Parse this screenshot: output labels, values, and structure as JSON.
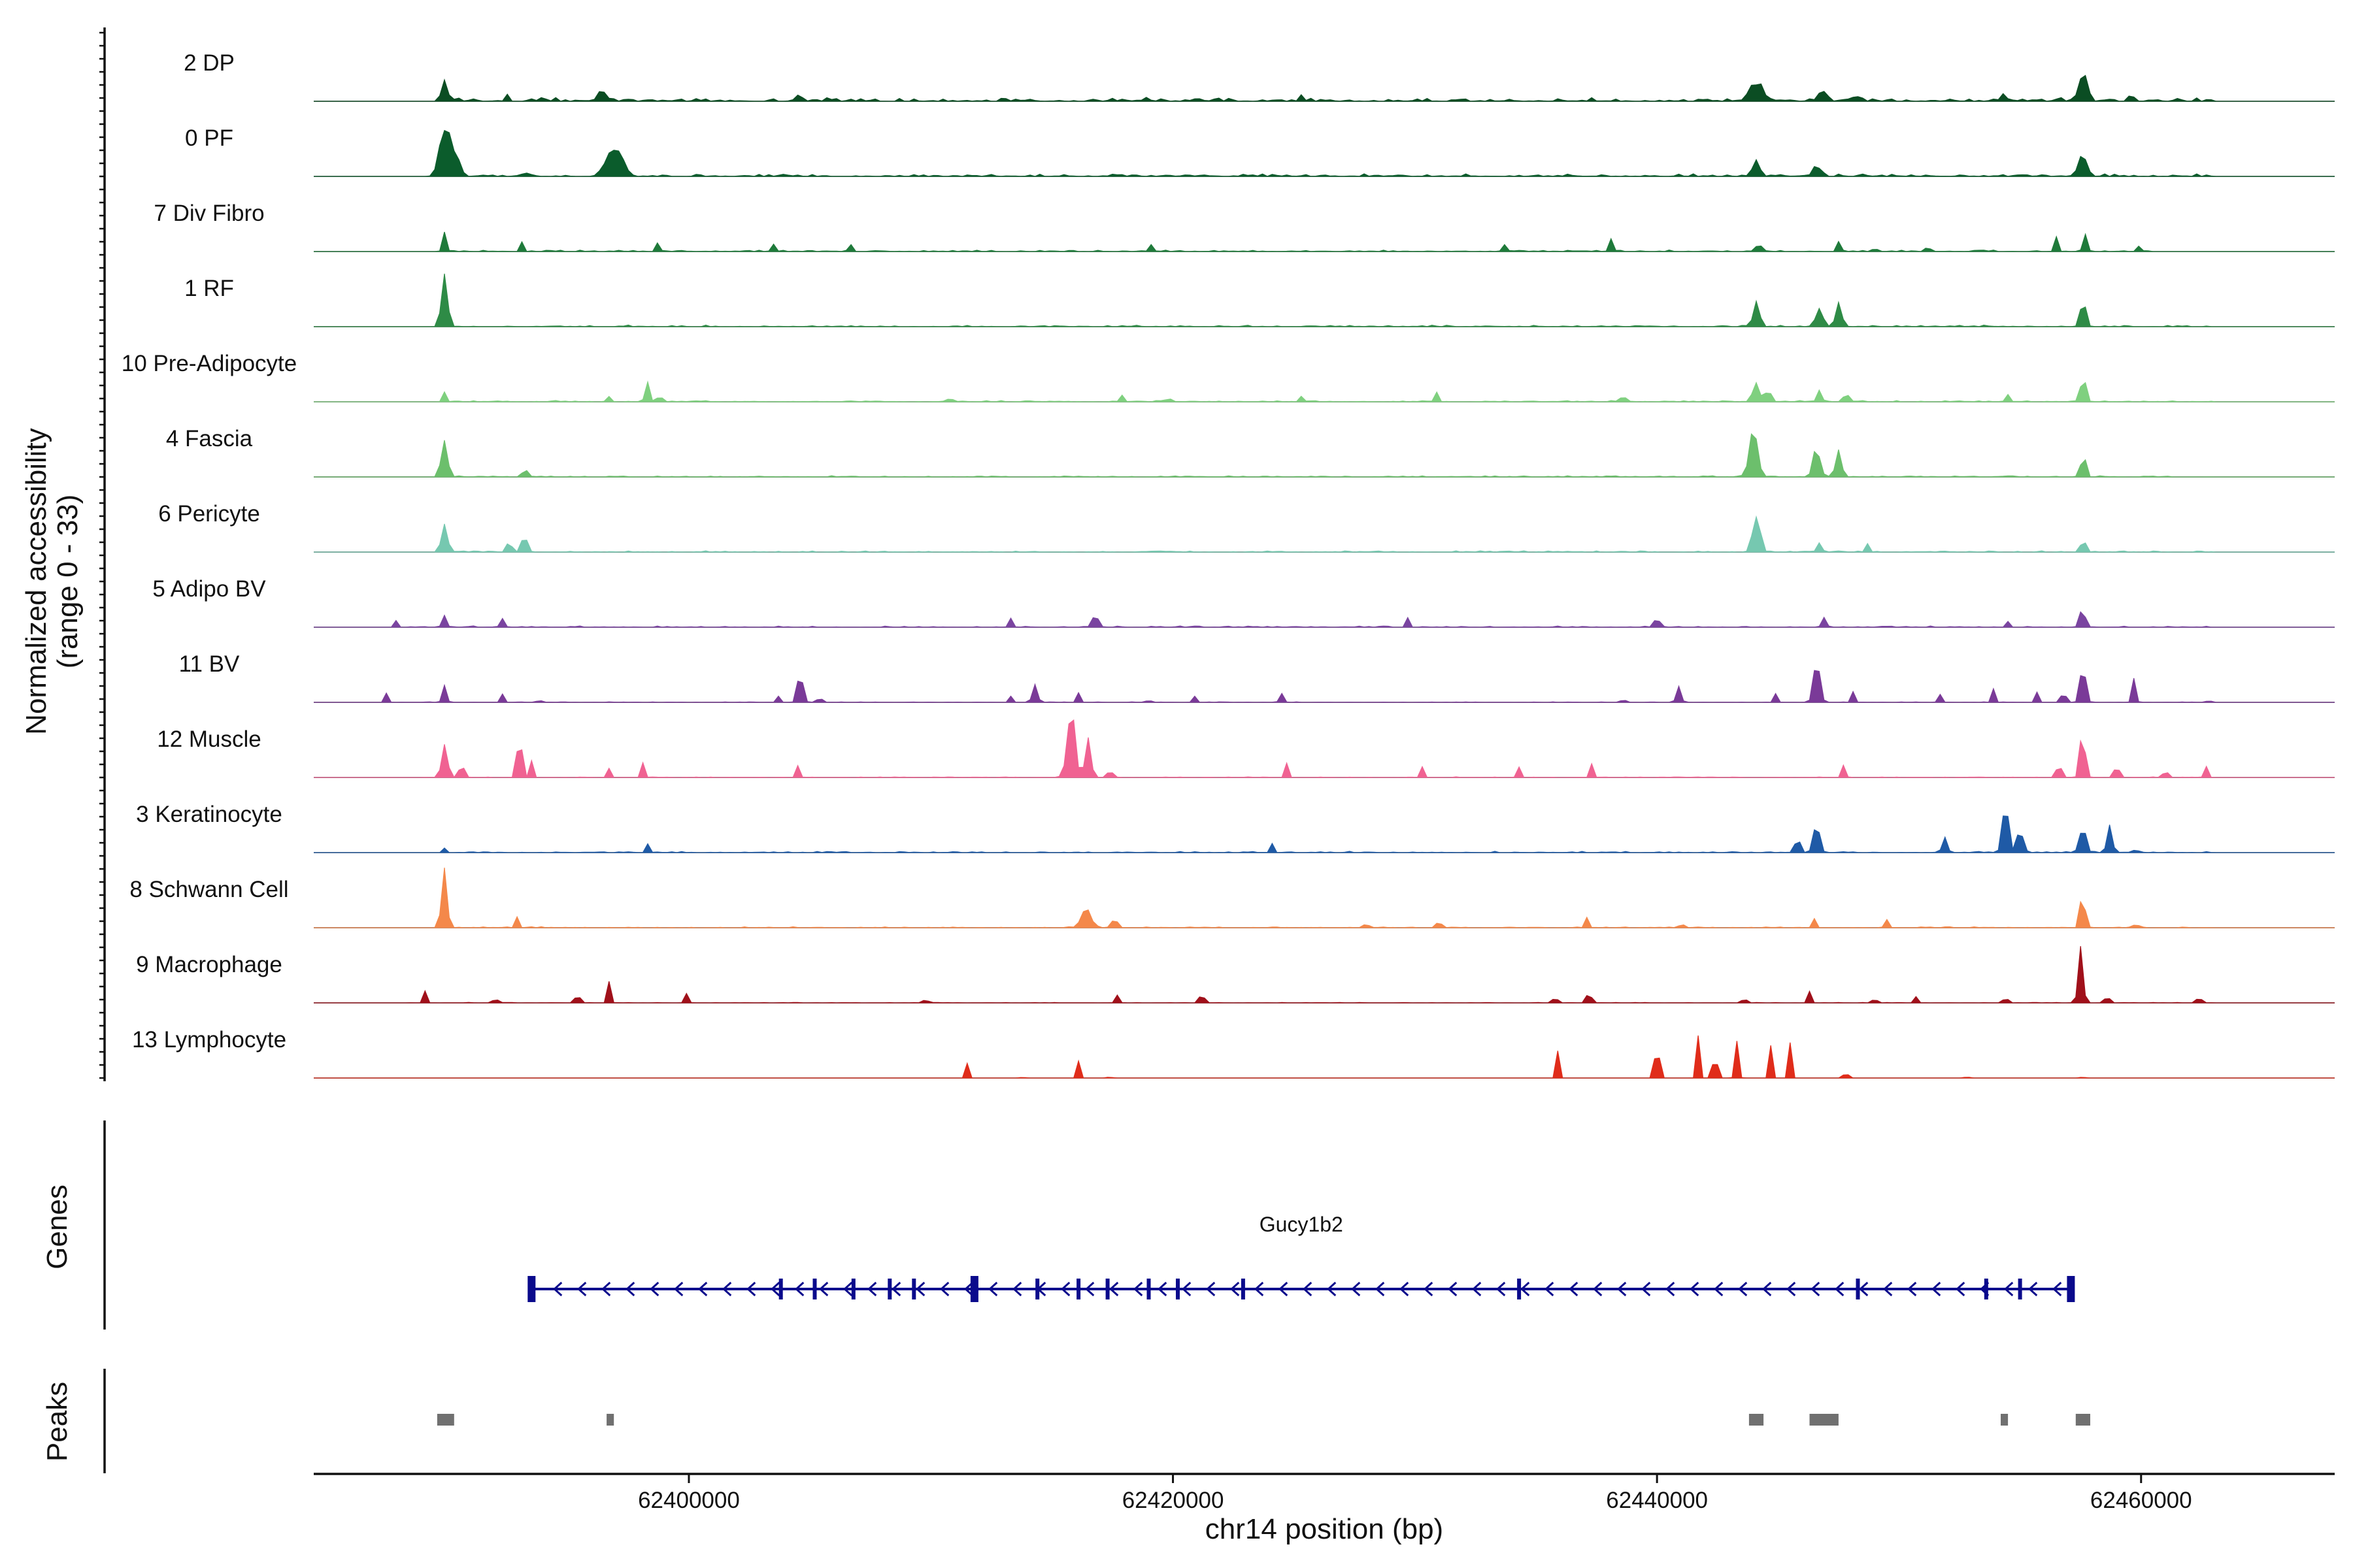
{
  "chart_data": {
    "type": "genome-browser-coverage",
    "y_axis_title_line1": "Normalized accessibility",
    "y_axis_title_line2": "(range 0 - 33)",
    "y_range": [
      0,
      33
    ],
    "x_axis_title": "chr14 position (bp)",
    "x_range": [
      62384500,
      62468000
    ],
    "x_ticks": [
      62400000,
      62420000,
      62440000,
      62460000
    ],
    "x_tick_labels": [
      "62400000",
      "62420000",
      "62440000",
      "62460000"
    ],
    "tracks": [
      {
        "name": "2 DP",
        "color": "#0b4d23",
        "noise": 0.7,
        "region": [
          62390000,
          62463000
        ],
        "peaks": [
          [
            62389900,
            3.5,
            120
          ],
          [
            62392500,
            0.8,
            60
          ],
          [
            62396400,
            1.6,
            180
          ],
          [
            62404600,
            0.8,
            100
          ],
          [
            62425300,
            0.6,
            80
          ],
          [
            62444100,
            3.2,
            260
          ],
          [
            62446800,
            1.5,
            180
          ],
          [
            62448200,
            1.0,
            100
          ],
          [
            62454300,
            1.0,
            120
          ],
          [
            62457600,
            6.0,
            160
          ],
          [
            62459600,
            1.0,
            100
          ]
        ]
      },
      {
        "name": "0 PF",
        "color": "#0b5c2c",
        "noise": 0.5,
        "region": [
          62390000,
          62463000
        ],
        "peaks": [
          [
            62389900,
            10.0,
            200
          ],
          [
            62390400,
            3.0,
            150
          ],
          [
            62393200,
            0.8,
            60
          ],
          [
            62396800,
            4.5,
            260
          ],
          [
            62397200,
            2.0,
            200
          ],
          [
            62444100,
            2.5,
            140
          ],
          [
            62446600,
            1.5,
            160
          ],
          [
            62457600,
            5.0,
            140
          ]
        ]
      },
      {
        "name": "7 Div Fibro",
        "color": "#1e7a3a",
        "noise": 0.3,
        "region": [
          62390000,
          62460500
        ],
        "peaks": [
          [
            62389900,
            2.8,
            80
          ],
          [
            62393100,
            1.6,
            60
          ],
          [
            62398700,
            1.2,
            60
          ],
          [
            62403500,
            1.5,
            70
          ],
          [
            62406700,
            1.2,
            60
          ],
          [
            62419100,
            1.0,
            60
          ],
          [
            62433700,
            1.2,
            70
          ],
          [
            62438100,
            2.0,
            60
          ],
          [
            62444200,
            1.8,
            80
          ],
          [
            62447500,
            2.2,
            70
          ],
          [
            62449000,
            1.4,
            60
          ],
          [
            62451200,
            1.8,
            60
          ],
          [
            62456500,
            2.3,
            70
          ],
          [
            62457700,
            2.6,
            80
          ],
          [
            62459900,
            1.0,
            60
          ]
        ]
      },
      {
        "name": "1 RF",
        "color": "#2e8b46",
        "noise": 0.3,
        "region": [
          62390000,
          62463000
        ],
        "peaks": [
          [
            62389900,
            9.0,
            120
          ],
          [
            62444100,
            5.0,
            120
          ],
          [
            62446700,
            3.0,
            140
          ],
          [
            62447500,
            3.5,
            130
          ],
          [
            62457600,
            5.0,
            100
          ]
        ]
      },
      {
        "name": "10 Pre-Adipocyte",
        "color": "#7fd07f",
        "noise": 0.25,
        "region": [
          62390000,
          62463000
        ],
        "peaks": [
          [
            62389900,
            2.0,
            70
          ],
          [
            62396700,
            1.2,
            60
          ],
          [
            62398300,
            3.0,
            90
          ],
          [
            62398800,
            1.6,
            70
          ],
          [
            62410800,
            1.4,
            60
          ],
          [
            62417900,
            1.2,
            60
          ],
          [
            62419800,
            1.6,
            60
          ],
          [
            62425300,
            1.0,
            60
          ],
          [
            62430900,
            1.4,
            60
          ],
          [
            62438600,
            3.0,
            60
          ],
          [
            62444100,
            3.5,
            120
          ],
          [
            62444600,
            2.2,
            100
          ],
          [
            62446700,
            2.2,
            90
          ],
          [
            62447800,
            1.8,
            90
          ],
          [
            62454500,
            1.5,
            60
          ],
          [
            62457600,
            6.0,
            90
          ]
        ]
      },
      {
        "name": "4 Fascia",
        "color": "#6cbf6c",
        "noise": 0.25,
        "region": [
          62390000,
          62463000
        ],
        "peaks": [
          [
            62389900,
            5.5,
            130
          ],
          [
            62393200,
            1.5,
            90
          ],
          [
            62444000,
            7.5,
            170
          ],
          [
            62446600,
            5.0,
            140
          ],
          [
            62447500,
            4.5,
            120
          ],
          [
            62457600,
            4.0,
            100
          ]
        ]
      },
      {
        "name": "6 Pericyte",
        "color": "#76c8b0",
        "noise": 0.25,
        "region": [
          62390000,
          62463000
        ],
        "peaks": [
          [
            62389900,
            5.0,
            120
          ],
          [
            62392600,
            2.0,
            100
          ],
          [
            62393200,
            3.8,
            100
          ],
          [
            62444100,
            8.0,
            140
          ],
          [
            62446700,
            2.0,
            90
          ],
          [
            62448700,
            1.2,
            60
          ],
          [
            62457600,
            2.2,
            100
          ]
        ]
      },
      {
        "name": "5 Adipo BV",
        "color": "#7a44a0",
        "noise": 0.25,
        "region": [
          62388500,
          62463000
        ],
        "peaks": [
          [
            62387900,
            1.4,
            60
          ],
          [
            62389900,
            2.0,
            80
          ],
          [
            62392300,
            1.2,
            60
          ],
          [
            62413300,
            1.4,
            60
          ],
          [
            62416800,
            2.2,
            120
          ],
          [
            62429700,
            1.6,
            60
          ],
          [
            62440000,
            1.8,
            90
          ],
          [
            62446900,
            1.4,
            80
          ],
          [
            62454500,
            1.2,
            60
          ],
          [
            62457600,
            4.0,
            90
          ]
        ]
      },
      {
        "name": "11 BV",
        "color": "#7a3a98",
        "noise": 0.1,
        "region": [
          62387500,
          62463000
        ],
        "peaks": [
          [
            62387500,
            1.6,
            60
          ],
          [
            62389900,
            3.0,
            80
          ],
          [
            62392300,
            1.4,
            50
          ],
          [
            62393800,
            1.5,
            50
          ],
          [
            62403700,
            1.4,
            50
          ],
          [
            62404600,
            6.5,
            100
          ],
          [
            62405400,
            1.6,
            60
          ],
          [
            62413300,
            1.4,
            50
          ],
          [
            62414300,
            3.0,
            100
          ],
          [
            62416100,
            1.4,
            50
          ],
          [
            62419000,
            1.4,
            50
          ],
          [
            62420900,
            1.4,
            50
          ],
          [
            62424500,
            2.0,
            80
          ],
          [
            62438600,
            1.8,
            50
          ],
          [
            62440900,
            2.6,
            90
          ],
          [
            62444900,
            1.6,
            50
          ],
          [
            62446600,
            8.0,
            120
          ],
          [
            62448100,
            1.6,
            50
          ],
          [
            62451700,
            1.4,
            50
          ],
          [
            62453900,
            2.5,
            60
          ],
          [
            62455700,
            2.0,
            60
          ],
          [
            62456800,
            2.8,
            70
          ],
          [
            62457600,
            9.0,
            100
          ],
          [
            62459700,
            4.0,
            70
          ],
          [
            62462800,
            1.4,
            50
          ]
        ]
      },
      {
        "name": "12 Muscle",
        "color": "#f06292",
        "noise": 0.12,
        "region": [
          62389000,
          62463000
        ],
        "peaks": [
          [
            62389900,
            7.0,
            110
          ],
          [
            62390600,
            3.5,
            80
          ],
          [
            62393000,
            7.5,
            90
          ],
          [
            62393500,
            3.0,
            60
          ],
          [
            62396700,
            1.8,
            60
          ],
          [
            62398100,
            2.6,
            60
          ],
          [
            62404500,
            1.8,
            60
          ],
          [
            62415800,
            10.5,
            160
          ],
          [
            62416500,
            6.0,
            120
          ],
          [
            62417400,
            3.0,
            60
          ],
          [
            62424700,
            3.0,
            60
          ],
          [
            62430300,
            2.4,
            60
          ],
          [
            62434300,
            2.2,
            60
          ],
          [
            62437300,
            2.0,
            60
          ],
          [
            62447700,
            2.8,
            60
          ],
          [
            62456600,
            3.5,
            80
          ],
          [
            62457600,
            9.0,
            100
          ],
          [
            62459000,
            3.0,
            70
          ],
          [
            62461000,
            3.0,
            60
          ],
          [
            62462700,
            2.2,
            60
          ]
        ]
      },
      {
        "name": "3 Keratinocyte",
        "color": "#1f5aa6",
        "noise": 0.25,
        "region": [
          62390000,
          62463000
        ],
        "peaks": [
          [
            62389900,
            1.0,
            60
          ],
          [
            62398300,
            1.2,
            60
          ],
          [
            62424100,
            1.2,
            60
          ],
          [
            62445800,
            2.8,
            100
          ],
          [
            62446600,
            6.0,
            120
          ],
          [
            62451900,
            2.5,
            100
          ],
          [
            62454400,
            9.0,
            120
          ],
          [
            62455000,
            4.5,
            120
          ],
          [
            62457600,
            5.0,
            120
          ],
          [
            62458700,
            4.0,
            110
          ],
          [
            62459800,
            1.2,
            60
          ]
        ]
      },
      {
        "name": "8 Schwann Cell",
        "color": "#f4884a",
        "noise": 0.2,
        "region": [
          62390000,
          62463000
        ],
        "peaks": [
          [
            62389900,
            10.0,
            110
          ],
          [
            62392900,
            2.0,
            60
          ],
          [
            62416400,
            3.5,
            200
          ],
          [
            62417600,
            2.0,
            100
          ],
          [
            62428000,
            1.6,
            60
          ],
          [
            62431000,
            1.6,
            70
          ],
          [
            62437100,
            1.6,
            60
          ],
          [
            62441000,
            1.6,
            60
          ],
          [
            62446500,
            1.6,
            60
          ],
          [
            62449500,
            1.6,
            60
          ],
          [
            62457600,
            6.0,
            100
          ],
          [
            62459800,
            1.4,
            60
          ]
        ]
      },
      {
        "name": "9 Macrophage",
        "color": "#a0101a",
        "noise": 0.1,
        "region": [
          62388500,
          62463000
        ],
        "peaks": [
          [
            62389100,
            1.8,
            60
          ],
          [
            62392000,
            1.6,
            60
          ],
          [
            62395400,
            2.4,
            70
          ],
          [
            62396700,
            3.0,
            60
          ],
          [
            62399900,
            2.0,
            60
          ],
          [
            62409800,
            1.4,
            60
          ],
          [
            62417700,
            1.4,
            60
          ],
          [
            62421200,
            1.8,
            80
          ],
          [
            62435800,
            2.2,
            60
          ],
          [
            62437200,
            2.8,
            70
          ],
          [
            62443600,
            1.8,
            60
          ],
          [
            62446300,
            2.0,
            70
          ],
          [
            62449000,
            1.4,
            60
          ],
          [
            62450700,
            1.4,
            60
          ],
          [
            62454400,
            2.0,
            60
          ],
          [
            62457500,
            8.0,
            100
          ],
          [
            62458600,
            2.4,
            60
          ],
          [
            62462400,
            2.0,
            60
          ]
        ]
      },
      {
        "name": "13 Lymphocyte",
        "color": "#e02c1a",
        "noise": 0.0,
        "region": [
          62411000,
          62458000
        ],
        "peaks": [
          [
            62411500,
            2.4,
            40
          ],
          [
            62413800,
            2.4,
            40
          ],
          [
            62416100,
            2.4,
            40
          ],
          [
            62417400,
            2.4,
            40
          ],
          [
            62435900,
            5.0,
            50
          ],
          [
            62440000,
            9.0,
            70
          ],
          [
            62441700,
            9.5,
            60
          ],
          [
            62442400,
            7.0,
            70
          ],
          [
            62443300,
            7.0,
            70
          ],
          [
            62444700,
            5.5,
            50
          ],
          [
            62445500,
            5.0,
            50
          ],
          [
            62447800,
            5.0,
            50
          ],
          [
            62452800,
            2.4,
            40
          ],
          [
            62457600,
            2.4,
            40
          ]
        ]
      }
    ],
    "gene": {
      "name": "Gucy1b2",
      "color": "#0a0a8c",
      "start": 62393500,
      "end": 62457100,
      "strand": "-",
      "exons": [
        62393500,
        62403800,
        62405200,
        62406800,
        62408300,
        62409300,
        62411800,
        62414400,
        62416100,
        62417300,
        62419000,
        62420200,
        62422900,
        62434300,
        62448300,
        62453600,
        62455000,
        62457100
      ]
    },
    "peaks_track": {
      "color": "#707070",
      "regions": [
        [
          62389600,
          62390300
        ],
        [
          62396600,
          62396900
        ],
        [
          62443800,
          62444400
        ],
        [
          62446300,
          62447500
        ],
        [
          62454200,
          62454500
        ],
        [
          62457300,
          62457900
        ]
      ]
    },
    "panel_labels": {
      "genes": "Genes",
      "peaks": "Peaks"
    }
  }
}
